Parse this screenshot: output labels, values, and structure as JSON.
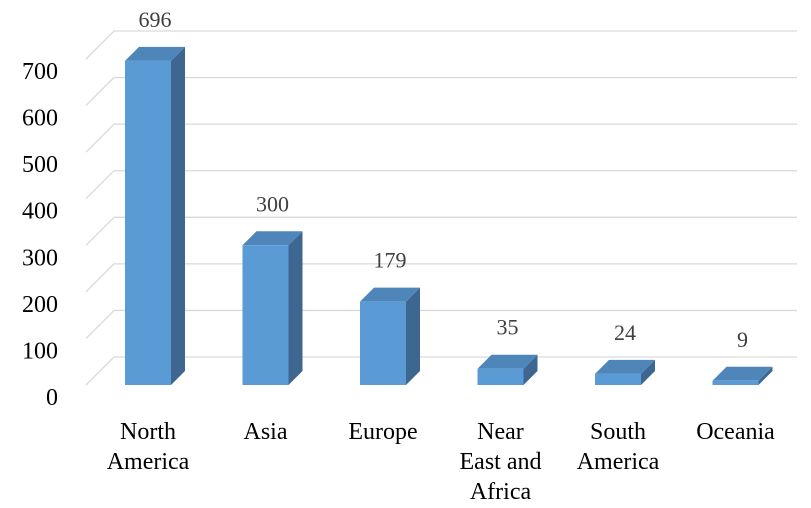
{
  "colors": {
    "bar_front": "#5B9BD5",
    "bar_side": "#3D6791",
    "bar_top": "#4F86BA",
    "grid": "#D9D9D9",
    "axis_text": "#000000",
    "label_text": "#404040"
  },
  "chart_data": {
    "type": "bar",
    "categories": [
      [
        "North",
        "America"
      ],
      [
        "Asia"
      ],
      [
        "Europe"
      ],
      [
        "Near",
        "East and",
        "Africa"
      ],
      [
        "South",
        "America"
      ],
      [
        "Oceania"
      ]
    ],
    "values": [
      696,
      300,
      179,
      35,
      24,
      9
    ],
    "data_labels": [
      "696",
      "300",
      "179",
      "35",
      "24",
      "9"
    ],
    "yticks": [
      0,
      100,
      200,
      300,
      400,
      500,
      600,
      700
    ],
    "ytick_labels": [
      "0",
      "100",
      "200",
      "300",
      "400",
      "500",
      "600",
      "700"
    ],
    "ylim": [
      0,
      700
    ],
    "grid": true,
    "legend": "none",
    "style": "3d-clustered-column"
  }
}
